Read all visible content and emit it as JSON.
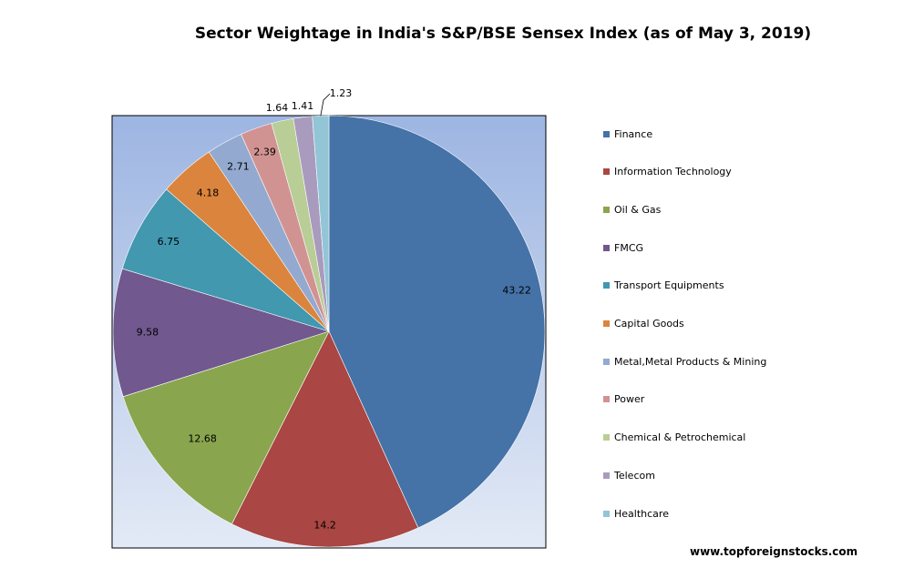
{
  "chart_data": {
    "type": "pie",
    "title": "Sector Weightage in India's S&P/BSE Sensex Index (as of May 3, 2019)",
    "categories": [
      "Finance",
      "Information Technology",
      "Oil & Gas",
      "FMCG",
      "Transport Equipments",
      "Capital Goods",
      "Metal,Metal Products & Mining",
      "Power",
      "Chemical & Petrochemical",
      "Telecom",
      "Healthcare"
    ],
    "values": [
      43.22,
      14.2,
      12.68,
      9.58,
      6.75,
      4.18,
      2.71,
      2.39,
      1.64,
      1.41,
      1.23
    ],
    "value_labels": [
      "43.22",
      "14.2",
      "12.68",
      "9.58",
      "6.75",
      "4.18",
      "2.71",
      "2.39",
      "1.64",
      "1.41",
      "1.23"
    ],
    "colors": [
      "#4572A7",
      "#AA4643",
      "#89A54E",
      "#71588F",
      "#4198AF",
      "#DB843D",
      "#93A9CF",
      "#D19392",
      "#B9CD96",
      "#A99BBD",
      "#92C5D6"
    ],
    "legend_position": "right",
    "plot_background": "gradient light blue"
  },
  "footer": {
    "source": "www.topforeignstocks.com"
  }
}
